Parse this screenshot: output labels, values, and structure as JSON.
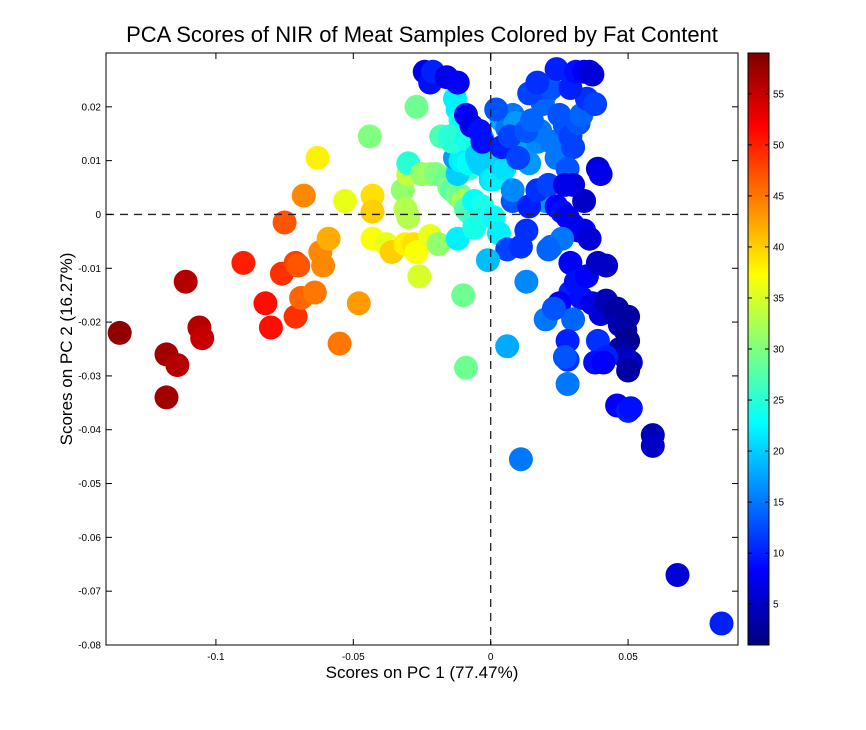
{
  "chart_data": {
    "type": "scatter",
    "title": "PCA Scores of NIR of Meat Samples Colored by Fat Content",
    "xlabel": "Scores on PC 1 (77.47%)",
    "ylabel": "Scores on PC 2 (16.27%)",
    "xlim": [
      -0.14,
      0.09
    ],
    "ylim": [
      -0.08,
      0.03
    ],
    "xticks": [
      -0.1,
      -0.05,
      0,
      0.05
    ],
    "xtick_labels": [
      "-0.1",
      "-0.05",
      "0",
      "0.05"
    ],
    "yticks": [
      0.02,
      0.01,
      0,
      -0.01,
      -0.02,
      -0.03,
      -0.04,
      -0.05,
      -0.06,
      -0.07,
      -0.08
    ],
    "ytick_labels": [
      "0.02",
      "0.01",
      "0",
      "-0.01",
      "-0.02",
      "-0.03",
      "-0.04",
      "-0.05",
      "-0.06",
      "-0.07",
      "-0.08"
    ],
    "reference_lines": {
      "x": 0,
      "y": 0,
      "style": "dashed"
    },
    "colorbar": {
      "colormap": "jet",
      "range": [
        1,
        59
      ],
      "ticks": [
        5,
        10,
        15,
        20,
        25,
        30,
        35,
        40,
        45,
        50,
        55
      ],
      "tick_labels": [
        "5",
        "10",
        "15",
        "20",
        "25",
        "30",
        "35",
        "40",
        "45",
        "50",
        "55"
      ]
    },
    "points": [
      [
        -0.135,
        -0.022,
        58
      ],
      [
        -0.118,
        -0.026,
        57
      ],
      [
        -0.114,
        -0.028,
        56
      ],
      [
        -0.118,
        -0.034,
        57
      ],
      [
        -0.111,
        -0.0125,
        56
      ],
      [
        -0.106,
        -0.021,
        56
      ],
      [
        -0.105,
        -0.023,
        55
      ],
      [
        -0.09,
        -0.009,
        50
      ],
      [
        -0.082,
        -0.0165,
        51
      ],
      [
        -0.08,
        -0.021,
        51
      ],
      [
        -0.076,
        -0.011,
        49
      ],
      [
        -0.075,
        -0.0015,
        47
      ],
      [
        -0.071,
        -0.009,
        48
      ],
      [
        -0.07,
        -0.0095,
        47
      ],
      [
        -0.071,
        -0.019,
        49
      ],
      [
        -0.069,
        -0.0155,
        46
      ],
      [
        -0.064,
        -0.0145,
        45
      ],
      [
        -0.062,
        -0.007,
        44
      ],
      [
        -0.061,
        -0.0095,
        44
      ],
      [
        -0.068,
        0.0035,
        44
      ],
      [
        -0.059,
        -0.0045,
        42
      ],
      [
        -0.055,
        -0.024,
        45
      ],
      [
        -0.048,
        -0.0165,
        43
      ],
      [
        -0.063,
        0.0105,
        38
      ],
      [
        -0.053,
        0.0025,
        36
      ],
      [
        -0.043,
        0.0035,
        39
      ],
      [
        -0.043,
        0.0005,
        40
      ],
      [
        -0.044,
        0.0145,
        30
      ],
      [
        -0.043,
        -0.0045,
        37
      ],
      [
        -0.038,
        -0.0055,
        36
      ],
      [
        -0.036,
        -0.007,
        40
      ],
      [
        -0.031,
        -0.0055,
        38
      ],
      [
        -0.028,
        -0.0055,
        39
      ],
      [
        -0.027,
        -0.007,
        37
      ],
      [
        -0.032,
        0.0045,
        31
      ],
      [
        -0.03,
        0.0075,
        34
      ],
      [
        -0.031,
        0.001,
        33
      ],
      [
        -0.03,
        -0.0005,
        33
      ],
      [
        -0.026,
        -0.0115,
        35
      ],
      [
        -0.022,
        -0.004,
        36
      ],
      [
        -0.03,
        0.0095,
        25
      ],
      [
        -0.027,
        0.02,
        29
      ],
      [
        -0.025,
        0.0075,
        31
      ],
      [
        -0.022,
        0.0075,
        32
      ],
      [
        -0.02,
        0.0075,
        30
      ],
      [
        -0.019,
        -0.0055,
        31
      ],
      [
        -0.016,
        0.0065,
        29
      ],
      [
        -0.015,
        0.005,
        30
      ],
      [
        -0.014,
        0.0045,
        28
      ],
      [
        -0.012,
        0.0035,
        30
      ],
      [
        -0.011,
        0.0035,
        29
      ],
      [
        -0.01,
        0.0025,
        32
      ],
      [
        -0.012,
        0.0095,
        26
      ],
      [
        -0.011,
        0.0085,
        27
      ],
      [
        -0.008,
        0.0085,
        26
      ],
      [
        -0.009,
        0.001,
        28
      ],
      [
        -0.008,
        0.0005,
        27
      ],
      [
        -0.006,
        -0.001,
        26
      ],
      [
        -0.006,
        0.0025,
        23
      ],
      [
        -0.003,
        0.0015,
        24
      ],
      [
        -0.012,
        -0.0045,
        22
      ],
      [
        -0.006,
        -0.0025,
        24
      ],
      [
        -0.012,
        0.0075,
        20
      ],
      [
        -0.013,
        0.0105,
        17
      ],
      [
        -0.011,
        0.01,
        22
      ],
      [
        -0.008,
        0.0095,
        23
      ],
      [
        -0.005,
        0.0105,
        21
      ],
      [
        -0.004,
        0.0095,
        20
      ],
      [
        -0.002,
        0.01,
        22
      ],
      [
        -0.001,
        0.0085,
        20
      ],
      [
        0.0,
        0.0065,
        21
      ],
      [
        0.001,
        0.0065,
        22
      ],
      [
        0.001,
        0.0105,
        20
      ],
      [
        0.003,
        0.0095,
        20
      ],
      [
        0.005,
        0.0085,
        21
      ],
      [
        0.001,
        -0.0005,
        23
      ],
      [
        0.003,
        -0.0035,
        22
      ],
      [
        -0.01,
        -0.015,
        29
      ],
      [
        -0.009,
        -0.0285,
        29
      ],
      [
        -0.018,
        0.0145,
        27
      ],
      [
        -0.012,
        0.0195,
        22
      ],
      [
        -0.011,
        0.0175,
        24
      ],
      [
        -0.013,
        0.0215,
        22
      ],
      [
        -0.01,
        0.0165,
        23
      ],
      [
        -0.015,
        0.0145,
        25
      ],
      [
        -0.014,
        0.0135,
        25
      ],
      [
        -0.009,
        0.014,
        24
      ],
      [
        -0.005,
        0.011,
        20
      ],
      [
        -0.003,
        0.014,
        18
      ],
      [
        0.004,
        0.0175,
        18
      ],
      [
        0.006,
        0.016,
        15
      ],
      [
        0.008,
        0.0185,
        15
      ],
      [
        0.009,
        0.017,
        17
      ],
      [
        0.007,
        0.0135,
        19
      ],
      [
        0.009,
        0.0125,
        18
      ],
      [
        0.012,
        0.0115,
        18
      ],
      [
        0.014,
        0.0095,
        17
      ],
      [
        0.017,
        0.0135,
        16
      ],
      [
        0.018,
        0.0155,
        15
      ],
      [
        0.019,
        0.0205,
        14
      ],
      [
        0.02,
        0.0225,
        14
      ],
      [
        0.022,
        0.0135,
        15
      ],
      [
        0.024,
        0.0105,
        15
      ],
      [
        0.025,
        0.0185,
        13
      ],
      [
        0.027,
        0.0165,
        13
      ],
      [
        0.029,
        0.0145,
        12
      ],
      [
        0.03,
        0.0125,
        12
      ],
      [
        0.032,
        0.017,
        13
      ],
      [
        0.033,
        0.0185,
        14
      ],
      [
        0.028,
        0.0085,
        13
      ],
      [
        0.035,
        0.0215,
        11
      ],
      [
        0.038,
        0.0205,
        12
      ],
      [
        0.014,
        0.0225,
        12
      ],
      [
        0.018,
        0.0235,
        12
      ],
      [
        0.022,
        0.0235,
        13
      ],
      [
        0.017,
        0.0245,
        11
      ],
      [
        0.024,
        0.027,
        10
      ],
      [
        0.029,
        0.0235,
        10
      ],
      [
        0.031,
        0.0265,
        9
      ],
      [
        0.034,
        0.0265,
        8
      ],
      [
        0.036,
        0.0265,
        7
      ],
      [
        0.037,
        0.026,
        6
      ],
      [
        0.039,
        0.0085,
        6
      ],
      [
        0.04,
        0.0075,
        7
      ],
      [
        -0.024,
        0.0265,
        7
      ],
      [
        -0.022,
        0.0245,
        9
      ],
      [
        -0.021,
        0.0265,
        10
      ],
      [
        -0.016,
        0.0255,
        7
      ],
      [
        -0.012,
        0.0245,
        8
      ],
      [
        -0.009,
        0.0185,
        8
      ],
      [
        -0.007,
        0.0165,
        7
      ],
      [
        -0.004,
        0.0155,
        9
      ],
      [
        -0.003,
        0.0135,
        9
      ],
      [
        0.004,
        0.0125,
        10
      ],
      [
        0.007,
        0.0145,
        12
      ],
      [
        0.01,
        0.0105,
        12
      ],
      [
        0.013,
        0.0155,
        13
      ],
      [
        0.015,
        0.0175,
        14
      ],
      [
        0.002,
        0.0195,
        13
      ],
      [
        0.008,
        0.0025,
        13
      ],
      [
        0.008,
        0.0045,
        16
      ],
      [
        0.006,
        -0.0065,
        12
      ],
      [
        0.011,
        -0.006,
        11
      ],
      [
        0.013,
        -0.003,
        11
      ],
      [
        0.02,
        0.0025,
        17
      ],
      [
        0.022,
        -0.006,
        14
      ],
      [
        0.014,
        0.0015,
        10
      ],
      [
        0.017,
        0.0045,
        11
      ],
      [
        0.021,
        0.0055,
        12
      ],
      [
        0.024,
        0.0015,
        8
      ],
      [
        0.026,
        0.0005,
        9
      ],
      [
        0.028,
        -0.0005,
        8
      ],
      [
        0.03,
        -0.002,
        8
      ],
      [
        0.032,
        -0.003,
        7
      ],
      [
        0.034,
        -0.003,
        7
      ],
      [
        0.036,
        -0.0045,
        6
      ],
      [
        0.034,
        0.0025,
        5
      ],
      [
        0.03,
        0.0055,
        6
      ],
      [
        0.027,
        0.0055,
        7
      ],
      [
        0.029,
        -0.009,
        8
      ],
      [
        0.029,
        -0.0145,
        10
      ],
      [
        0.031,
        -0.0125,
        9
      ],
      [
        0.033,
        -0.0155,
        9
      ],
      [
        0.035,
        -0.0115,
        8
      ],
      [
        0.037,
        -0.0165,
        7
      ],
      [
        0.039,
        -0.009,
        5
      ],
      [
        0.04,
        -0.0185,
        6
      ],
      [
        0.042,
        -0.0095,
        5
      ],
      [
        0.042,
        -0.016,
        4
      ],
      [
        0.045,
        -0.0185,
        4
      ],
      [
        0.046,
        -0.0175,
        3
      ],
      [
        0.047,
        -0.0205,
        4
      ],
      [
        0.05,
        -0.019,
        3
      ],
      [
        0.049,
        -0.0215,
        3
      ],
      [
        0.05,
        -0.0235,
        2
      ],
      [
        0.047,
        -0.025,
        3
      ],
      [
        0.049,
        -0.0265,
        4
      ],
      [
        0.051,
        -0.0275,
        5
      ],
      [
        0.05,
        -0.029,
        3
      ],
      [
        0.025,
        -0.0165,
        8
      ],
      [
        0.03,
        -0.0195,
        14
      ],
      [
        0.028,
        -0.027,
        11
      ],
      [
        0.028,
        -0.0235,
        10
      ],
      [
        0.039,
        -0.0235,
        11
      ],
      [
        0.042,
        -0.0265,
        10
      ],
      [
        0.038,
        -0.0275,
        9
      ],
      [
        0.041,
        -0.0275,
        8
      ],
      [
        0.028,
        -0.0315,
        15
      ],
      [
        0.027,
        -0.0265,
        13
      ],
      [
        0.006,
        -0.0245,
        18
      ],
      [
        0.013,
        -0.0125,
        16
      ],
      [
        0.02,
        -0.0195,
        15
      ],
      [
        0.023,
        -0.0175,
        13
      ],
      [
        0.026,
        -0.0045,
        15
      ],
      [
        -0.001,
        -0.0085,
        19
      ],
      [
        0.021,
        -0.0065,
        14
      ],
      [
        0.046,
        -0.0355,
        8
      ],
      [
        0.05,
        -0.0365,
        10
      ],
      [
        0.051,
        -0.036,
        9
      ],
      [
        0.059,
        -0.041,
        4
      ],
      [
        0.059,
        -0.043,
        5
      ],
      [
        0.068,
        -0.067,
        6
      ],
      [
        0.084,
        -0.076,
        10
      ],
      [
        0.011,
        -0.0455,
        15
      ]
    ]
  }
}
